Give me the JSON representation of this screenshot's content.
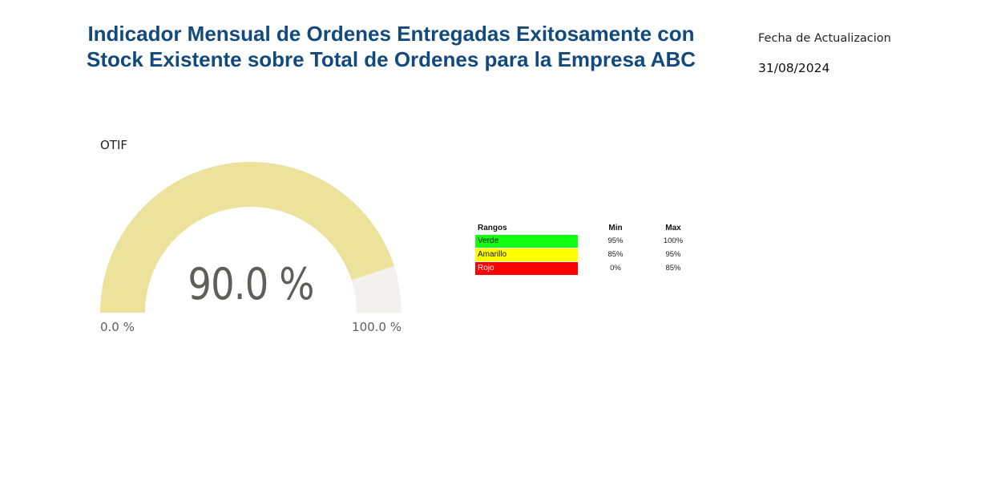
{
  "header": {
    "title_line1": "Indicador Mensual de Ordenes Entregadas Exitosamente con",
    "title_line2": "Stock Existente sobre Total de Ordenes para la Empresa ABC"
  },
  "update": {
    "label": "Fecha de Actualizacion",
    "date": "31/08/2024"
  },
  "gauge": {
    "title": "OTIF",
    "value_label": "90.0 %",
    "value": 90.0,
    "min_value": 0.0,
    "max_value": 100.0,
    "min_label": "0.0 %",
    "max_label": "100.0 %",
    "fill_color": "#ede29c",
    "track_color": "#f2f1f0"
  },
  "ranges": {
    "headers": {
      "name": "Rangos",
      "min": "Min",
      "max": "Max"
    },
    "rows": [
      {
        "name": "Verde",
        "min": "95%",
        "max": "100%",
        "color": "#11ff11"
      },
      {
        "name": "Amarillo",
        "min": "85%",
        "max": "95%",
        "color": "#ffff00"
      },
      {
        "name": "Rojo",
        "min": "0%",
        "max": "85%",
        "color": "#ff0000"
      }
    ]
  }
}
